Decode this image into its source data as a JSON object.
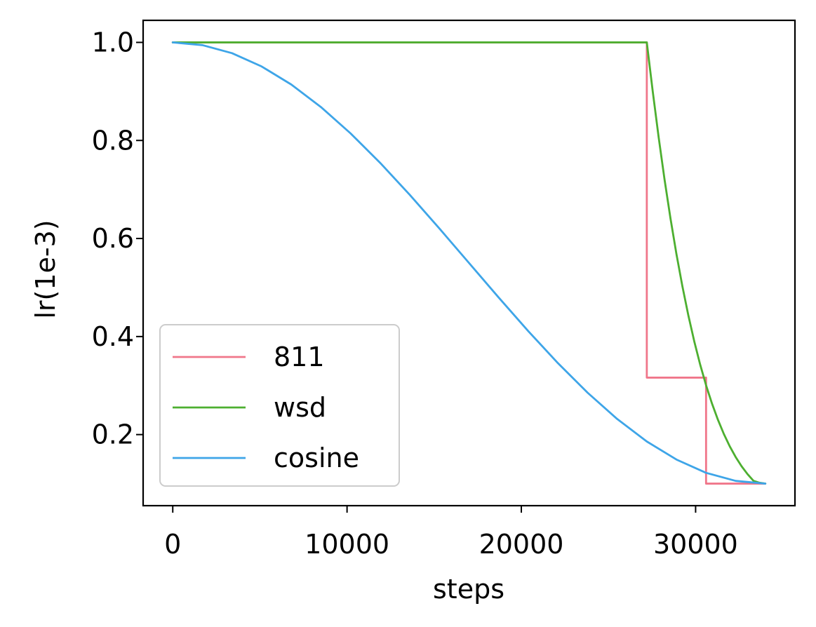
{
  "chart_data": {
    "type": "line",
    "title": "",
    "xlabel": "steps",
    "ylabel": "lr(1e-3)",
    "xlim": [
      -1700,
      35700
    ],
    "ylim": [
      0.055,
      1.045
    ],
    "xticks": [
      0,
      10000,
      20000,
      30000
    ],
    "xtick_labels": [
      "0",
      "10000",
      "20000",
      "30000"
    ],
    "yticks": [
      0.2,
      0.4,
      0.6,
      0.8,
      1.0
    ],
    "ytick_labels": [
      "0.2",
      "0.4",
      "0.6",
      "0.8",
      "1.0"
    ],
    "grid": false,
    "legend_position": "lower-left",
    "series": [
      {
        "name": "811",
        "color": "#f0768a",
        "points": [
          [
            0,
            1.0
          ],
          [
            27200,
            1.0
          ],
          [
            27200,
            0.3162
          ],
          [
            30600,
            0.3162
          ],
          [
            30600,
            0.1
          ],
          [
            34000,
            0.1
          ]
        ]
      },
      {
        "name": "wsd",
        "color": "#4daf30",
        "points": [
          [
            0,
            1.0
          ],
          [
            27200,
            1.0
          ],
          [
            27540,
            0.9
          ],
          [
            27880,
            0.8063
          ],
          [
            28220,
            0.7197
          ],
          [
            28560,
            0.6405
          ],
          [
            28900,
            0.5683
          ],
          [
            29240,
            0.5028
          ],
          [
            29580,
            0.4437
          ],
          [
            29920,
            0.3905
          ],
          [
            30260,
            0.343
          ],
          [
            30600,
            0.3007
          ],
          [
            30940,
            0.2633
          ],
          [
            31280,
            0.2303
          ],
          [
            31620,
            0.2013
          ],
          [
            31960,
            0.176
          ],
          [
            32300,
            0.1541
          ],
          [
            32640,
            0.1353
          ],
          [
            32980,
            0.1193
          ],
          [
            33320,
            0.1057
          ],
          [
            33660,
            0.1018
          ],
          [
            34000,
            0.1
          ]
        ]
      },
      {
        "name": "cosine",
        "color": "#3ea5e8",
        "points": [
          [
            0,
            1.0
          ],
          [
            1700,
            0.9945
          ],
          [
            3400,
            0.978
          ],
          [
            5100,
            0.9509
          ],
          [
            6800,
            0.9141
          ],
          [
            8500,
            0.8682
          ],
          [
            10200,
            0.8145
          ],
          [
            11900,
            0.7543
          ],
          [
            13600,
            0.689
          ],
          [
            15300,
            0.6204
          ],
          [
            17000,
            0.55
          ],
          [
            18700,
            0.4796
          ],
          [
            20400,
            0.411
          ],
          [
            22100,
            0.3457
          ],
          [
            23800,
            0.2855
          ],
          [
            25500,
            0.2318
          ],
          [
            27200,
            0.1859
          ],
          [
            28900,
            0.1491
          ],
          [
            30600,
            0.122
          ],
          [
            32300,
            0.1055
          ],
          [
            34000,
            0.1
          ]
        ]
      }
    ]
  }
}
